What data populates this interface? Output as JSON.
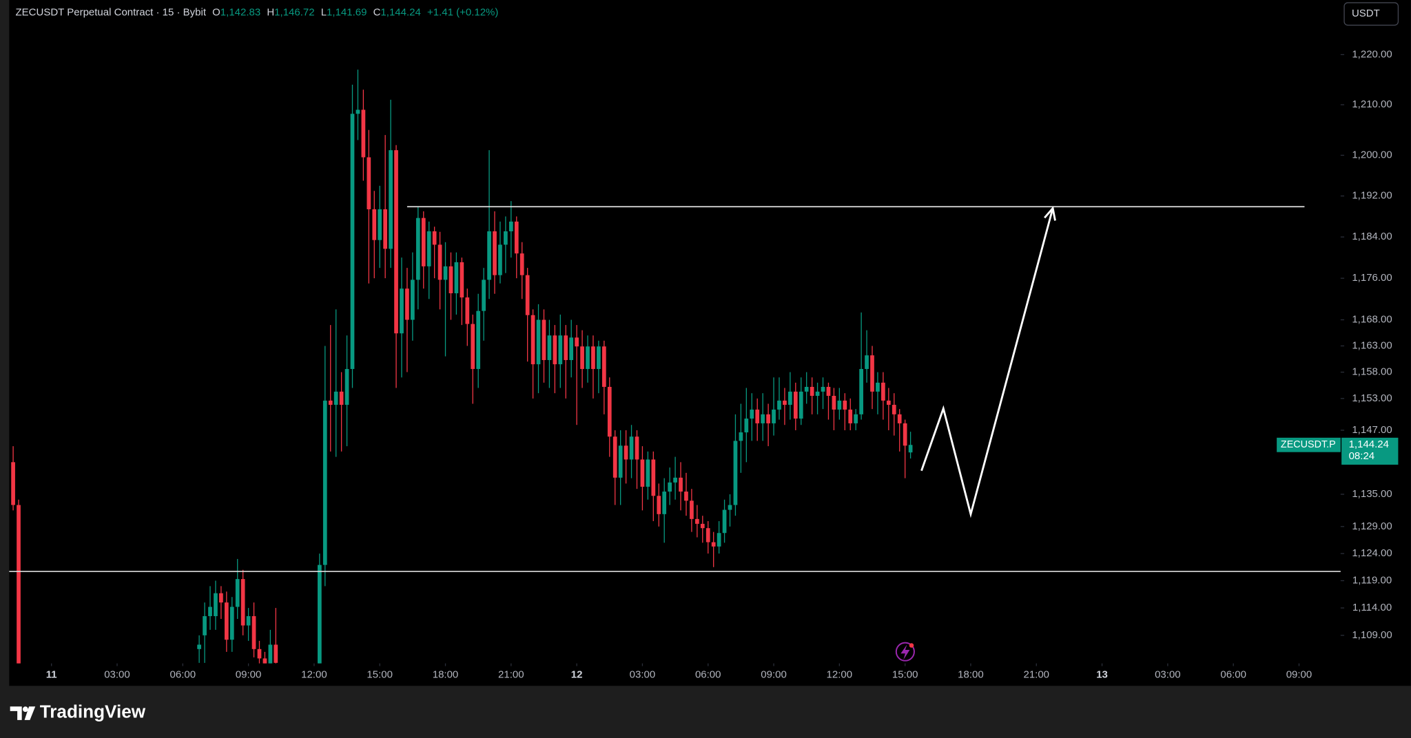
{
  "chart_data": {
    "type": "candlestick",
    "log_scale": true,
    "up_color": "#089981",
    "down_color": "#f23645",
    "header": {
      "title": "ZECUSDT Perpetual Contract · 15 · Bybit",
      "open_label": "O",
      "open": "1,142.83",
      "high_label": "H",
      "high": "1,146.72",
      "low_label": "L",
      "low": "1,141.69",
      "close_label": "C",
      "close": "1,144.24",
      "change": "+1.41 (+0.12%)"
    },
    "currency": "USDT",
    "price_tag": {
      "symbol": "ZECUSDT.P",
      "price": "1,144.24",
      "countdown": "08:24"
    },
    "brand": "TradingView",
    "xlim": [
      -1.93,
      58.9
    ],
    "xticks": [
      {
        "value": 0,
        "label": "11"
      },
      {
        "value": 3,
        "label": "03:00"
      },
      {
        "value": 6,
        "label": "06:00"
      },
      {
        "value": 9,
        "label": "09:00"
      },
      {
        "value": 12,
        "label": "12:00"
      },
      {
        "value": 15,
        "label": "15:00"
      },
      {
        "value": 18,
        "label": "18:00"
      },
      {
        "value": 21,
        "label": "21:00"
      },
      {
        "value": 24,
        "label": "12"
      },
      {
        "value": 27,
        "label": "03:00"
      },
      {
        "value": 30,
        "label": "06:00"
      },
      {
        "value": 33,
        "label": "09:00"
      },
      {
        "value": 36,
        "label": "12:00"
      },
      {
        "value": 39,
        "label": "15:00"
      },
      {
        "value": 42,
        "label": "18:00"
      },
      {
        "value": 45,
        "label": "21:00"
      },
      {
        "value": 48,
        "label": "13"
      },
      {
        "value": 51,
        "label": "03:00"
      },
      {
        "value": 54,
        "label": "06:00"
      },
      {
        "value": 57,
        "label": "09:00"
      }
    ],
    "ylim": [
      1103.9,
      1231.0
    ],
    "yticks": [
      {
        "value": 1220,
        "label": "1,220.00"
      },
      {
        "value": 1210,
        "label": "1,210.00"
      },
      {
        "value": 1200,
        "label": "1,200.00"
      },
      {
        "value": 1192,
        "label": "1,192.00"
      },
      {
        "value": 1184,
        "label": "1,184.00"
      },
      {
        "value": 1176,
        "label": "1,176.00"
      },
      {
        "value": 1168,
        "label": "1,168.00"
      },
      {
        "value": 1163,
        "label": "1,163.00"
      },
      {
        "value": 1158,
        "label": "1,158.00"
      },
      {
        "value": 1153,
        "label": "1,153.00"
      },
      {
        "value": 1147,
        "label": "1,147.00"
      },
      {
        "value": 1135,
        "label": "1,135.00"
      },
      {
        "value": 1129,
        "label": "1,129.00"
      },
      {
        "value": 1124,
        "label": "1,124.00"
      },
      {
        "value": 1119,
        "label": "1,119.00"
      },
      {
        "value": 1114,
        "label": "1,114.00"
      },
      {
        "value": 1109,
        "label": "1,109.00"
      }
    ],
    "levels": [
      {
        "value": 1189.9,
        "x": [
          16.25,
          57.25
        ]
      },
      {
        "value": 1120.7
      }
    ],
    "projection": {
      "x": [
        39.75,
        40.75,
        42.0,
        45.75
      ],
      "values": [
        1139.4,
        1151.1,
        1131.3,
        1189.6
      ]
    },
    "candles": [
      {
        "x": -1.75,
        "open": 1141,
        "high": 1144,
        "low": 1132,
        "close": 1133
      },
      {
        "x": -1.5,
        "open": 1133,
        "high": 1134,
        "low": 1100,
        "close": 1101
      },
      {
        "x": 6.75,
        "open": 1106.5,
        "high": 1109,
        "low": 1104,
        "close": 1107.3
      },
      {
        "x": 7.0,
        "open": 1109,
        "high": 1115,
        "low": 1104,
        "close": 1112.5
      },
      {
        "x": 7.25,
        "open": 1112.5,
        "high": 1118,
        "low": 1110,
        "close": 1114.2
      },
      {
        "x": 7.5,
        "open": 1112.5,
        "high": 1119,
        "low": 1110,
        "close": 1116.7
      },
      {
        "x": 7.75,
        "open": 1116.7,
        "high": 1118,
        "low": 1112,
        "close": 1115
      },
      {
        "x": 8.0,
        "open": 1115,
        "high": 1117,
        "low": 1106,
        "close": 1108.2
      },
      {
        "x": 8.25,
        "open": 1108.2,
        "high": 1116,
        "low": 1106,
        "close": 1114.2
      },
      {
        "x": 8.5,
        "open": 1114.2,
        "high": 1123,
        "low": 1112,
        "close": 1119.3
      },
      {
        "x": 8.75,
        "open": 1119.3,
        "high": 1121,
        "low": 1109,
        "close": 1110.8
      },
      {
        "x": 9.0,
        "open": 1110.8,
        "high": 1114,
        "low": 1108,
        "close": 1112.5
      },
      {
        "x": 9.25,
        "open": 1112.5,
        "high": 1115,
        "low": 1105,
        "close": 1106.5
      },
      {
        "x": 9.5,
        "open": 1106.5,
        "high": 1108,
        "low": 1102,
        "close": 1104.8
      },
      {
        "x": 9.75,
        "open": 1104.8,
        "high": 1106,
        "low": 1101,
        "close": 1103
      },
      {
        "x": 10.0,
        "open": 1103,
        "high": 1110,
        "low": 1102,
        "close": 1107.3
      },
      {
        "x": 10.25,
        "open": 1107.3,
        "high": 1114,
        "low": 1102,
        "close": 1104
      },
      {
        "x": 12.25,
        "open": 1100,
        "high": 1124,
        "low": 1098,
        "close": 1121.9
      },
      {
        "x": 12.5,
        "open": 1121.9,
        "high": 1163,
        "low": 1118,
        "close": 1152.6
      },
      {
        "x": 12.75,
        "open": 1152.6,
        "high": 1167,
        "low": 1143,
        "close": 1151.8
      },
      {
        "x": 13.0,
        "open": 1151.8,
        "high": 1170,
        "low": 1142,
        "close": 1154.3
      },
      {
        "x": 13.25,
        "open": 1154.3,
        "high": 1158,
        "low": 1143,
        "close": 1151.8
      },
      {
        "x": 13.5,
        "open": 1151.8,
        "high": 1165,
        "low": 1144,
        "close": 1158.6
      },
      {
        "x": 13.75,
        "open": 1158.6,
        "high": 1214,
        "low": 1155,
        "close": 1208.2
      },
      {
        "x": 14.0,
        "open": 1208.2,
        "high": 1217,
        "low": 1203,
        "close": 1209
      },
      {
        "x": 14.25,
        "open": 1209,
        "high": 1213,
        "low": 1195,
        "close": 1199.6
      },
      {
        "x": 14.5,
        "open": 1199.6,
        "high": 1205,
        "low": 1175,
        "close": 1189.4
      },
      {
        "x": 14.75,
        "open": 1189.4,
        "high": 1193,
        "low": 1176,
        "close": 1183.4
      },
      {
        "x": 15.0,
        "open": 1183.4,
        "high": 1194,
        "low": 1178,
        "close": 1189.4
      },
      {
        "x": 15.25,
        "open": 1189.4,
        "high": 1204,
        "low": 1176,
        "close": 1181.7
      },
      {
        "x": 15.5,
        "open": 1181.7,
        "high": 1211,
        "low": 1178,
        "close": 1201
      },
      {
        "x": 15.75,
        "open": 1201,
        "high": 1202,
        "low": 1155,
        "close": 1165.4
      },
      {
        "x": 16.0,
        "open": 1165.4,
        "high": 1180,
        "low": 1157,
        "close": 1174
      },
      {
        "x": 16.25,
        "open": 1174,
        "high": 1178,
        "low": 1158,
        "close": 1168
      },
      {
        "x": 16.5,
        "open": 1168,
        "high": 1181,
        "low": 1164,
        "close": 1175.7
      },
      {
        "x": 16.75,
        "open": 1175.7,
        "high": 1190,
        "low": 1170,
        "close": 1187.7
      },
      {
        "x": 17.0,
        "open": 1187.7,
        "high": 1189,
        "low": 1174,
        "close": 1178.3
      },
      {
        "x": 17.25,
        "open": 1178.3,
        "high": 1187,
        "low": 1172,
        "close": 1185.1
      },
      {
        "x": 17.5,
        "open": 1185.1,
        "high": 1186,
        "low": 1176,
        "close": 1182.5
      },
      {
        "x": 17.75,
        "open": 1182.5,
        "high": 1185,
        "low": 1170,
        "close": 1175.7
      },
      {
        "x": 18.0,
        "open": 1175.7,
        "high": 1183,
        "low": 1161,
        "close": 1178.3
      },
      {
        "x": 18.25,
        "open": 1178.3,
        "high": 1181,
        "low": 1168,
        "close": 1173.1
      },
      {
        "x": 18.5,
        "open": 1173.1,
        "high": 1181,
        "low": 1169,
        "close": 1179.1
      },
      {
        "x": 18.75,
        "open": 1179.1,
        "high": 1180,
        "low": 1167,
        "close": 1172.3
      },
      {
        "x": 19.0,
        "open": 1172.3,
        "high": 1174,
        "low": 1163,
        "close": 1167.2
      },
      {
        "x": 19.25,
        "open": 1167.2,
        "high": 1169,
        "low": 1152,
        "close": 1158.6
      },
      {
        "x": 19.5,
        "open": 1158.6,
        "high": 1173,
        "low": 1155,
        "close": 1169.7
      },
      {
        "x": 19.75,
        "open": 1169.7,
        "high": 1178,
        "low": 1164,
        "close": 1175.7
      },
      {
        "x": 20.0,
        "open": 1175.7,
        "high": 1201,
        "low": 1172,
        "close": 1185.1
      },
      {
        "x": 20.25,
        "open": 1185.1,
        "high": 1189,
        "low": 1173,
        "close": 1176.6
      },
      {
        "x": 20.5,
        "open": 1176.6,
        "high": 1187,
        "low": 1175,
        "close": 1182.5
      },
      {
        "x": 20.75,
        "open": 1182.5,
        "high": 1188,
        "low": 1177,
        "close": 1185.1
      },
      {
        "x": 21.0,
        "open": 1185.1,
        "high": 1191,
        "low": 1180,
        "close": 1187
      },
      {
        "x": 21.25,
        "open": 1187,
        "high": 1188,
        "low": 1176,
        "close": 1180.8
      },
      {
        "x": 21.5,
        "open": 1180.8,
        "high": 1183,
        "low": 1172,
        "close": 1176.6
      },
      {
        "x": 21.75,
        "open": 1176.6,
        "high": 1178,
        "low": 1160,
        "close": 1168.9
      },
      {
        "x": 22.0,
        "open": 1168.9,
        "high": 1170,
        "low": 1153,
        "close": 1159.5
      },
      {
        "x": 22.25,
        "open": 1159.5,
        "high": 1171,
        "low": 1154,
        "close": 1168
      },
      {
        "x": 22.5,
        "open": 1168,
        "high": 1170,
        "low": 1156,
        "close": 1160.3
      },
      {
        "x": 22.75,
        "open": 1160.3,
        "high": 1168,
        "low": 1155,
        "close": 1165
      },
      {
        "x": 23.0,
        "open": 1165,
        "high": 1167,
        "low": 1154,
        "close": 1159.5
      },
      {
        "x": 23.25,
        "open": 1159.5,
        "high": 1169,
        "low": 1155,
        "close": 1165
      },
      {
        "x": 23.5,
        "open": 1165,
        "high": 1167,
        "low": 1153,
        "close": 1160.3
      },
      {
        "x": 23.75,
        "open": 1160.3,
        "high": 1168,
        "low": 1157,
        "close": 1164.6
      },
      {
        "x": 24.0,
        "open": 1164.6,
        "high": 1167,
        "low": 1148,
        "close": 1162.9
      },
      {
        "x": 24.25,
        "open": 1162.9,
        "high": 1166,
        "low": 1155,
        "close": 1158.6
      },
      {
        "x": 24.5,
        "open": 1158.6,
        "high": 1165,
        "low": 1156,
        "close": 1162.9
      },
      {
        "x": 24.75,
        "open": 1162.9,
        "high": 1165,
        "low": 1153,
        "close": 1158.6
      },
      {
        "x": 25.0,
        "open": 1158.6,
        "high": 1164,
        "low": 1154,
        "close": 1162.9
      },
      {
        "x": 25.25,
        "open": 1162.9,
        "high": 1164,
        "low": 1150,
        "close": 1155.2
      },
      {
        "x": 25.5,
        "open": 1155.2,
        "high": 1157,
        "low": 1142,
        "close": 1145.8
      },
      {
        "x": 25.75,
        "open": 1145.8,
        "high": 1147,
        "low": 1133,
        "close": 1138.1
      },
      {
        "x": 26.0,
        "open": 1138.1,
        "high": 1147,
        "low": 1133,
        "close": 1144.1
      },
      {
        "x": 26.25,
        "open": 1144.1,
        "high": 1147,
        "low": 1137,
        "close": 1141.5
      },
      {
        "x": 26.5,
        "open": 1141.5,
        "high": 1148,
        "low": 1138,
        "close": 1145.8
      },
      {
        "x": 26.75,
        "open": 1145.8,
        "high": 1147,
        "low": 1136,
        "close": 1141.5
      },
      {
        "x": 27.0,
        "open": 1141.5,
        "high": 1144,
        "low": 1132,
        "close": 1136.4
      },
      {
        "x": 27.25,
        "open": 1136.4,
        "high": 1143,
        "low": 1134,
        "close": 1141.5
      },
      {
        "x": 27.5,
        "open": 1141.5,
        "high": 1143,
        "low": 1130,
        "close": 1134.7
      },
      {
        "x": 27.75,
        "open": 1134.7,
        "high": 1137,
        "low": 1129,
        "close": 1131.3
      },
      {
        "x": 28.0,
        "open": 1131.3,
        "high": 1138,
        "low": 1126,
        "close": 1135.5
      },
      {
        "x": 28.25,
        "open": 1135.5,
        "high": 1140,
        "low": 1133,
        "close": 1137.2
      },
      {
        "x": 28.5,
        "open": 1137.2,
        "high": 1142,
        "low": 1134,
        "close": 1138.1
      },
      {
        "x": 28.75,
        "open": 1138.1,
        "high": 1141,
        "low": 1132,
        "close": 1135.5
      },
      {
        "x": 29.0,
        "open": 1135.5,
        "high": 1139,
        "low": 1131,
        "close": 1133.8
      },
      {
        "x": 29.25,
        "open": 1133.8,
        "high": 1136,
        "low": 1128,
        "close": 1130.4
      },
      {
        "x": 29.5,
        "open": 1130.4,
        "high": 1133,
        "low": 1127,
        "close": 1129.5
      },
      {
        "x": 29.75,
        "open": 1129.5,
        "high": 1131,
        "low": 1126,
        "close": 1128.7
      },
      {
        "x": 30.0,
        "open": 1128.7,
        "high": 1130,
        "low": 1124,
        "close": 1126.1
      },
      {
        "x": 30.25,
        "open": 1126.1,
        "high": 1128,
        "low": 1121.5,
        "close": 1125.3
      },
      {
        "x": 30.5,
        "open": 1125.3,
        "high": 1130,
        "low": 1124,
        "close": 1127.8
      },
      {
        "x": 30.75,
        "open": 1127.8,
        "high": 1134,
        "low": 1126,
        "close": 1132.1
      },
      {
        "x": 31.0,
        "open": 1132.1,
        "high": 1135,
        "low": 1129,
        "close": 1133
      },
      {
        "x": 31.25,
        "open": 1133,
        "high": 1150,
        "low": 1131,
        "close": 1145
      },
      {
        "x": 31.5,
        "open": 1145,
        "high": 1152,
        "low": 1139,
        "close": 1146.6
      },
      {
        "x": 31.75,
        "open": 1146.6,
        "high": 1155,
        "low": 1141,
        "close": 1149.2
      },
      {
        "x": 32.0,
        "open": 1149.2,
        "high": 1154,
        "low": 1145,
        "close": 1150.9
      },
      {
        "x": 32.25,
        "open": 1150.9,
        "high": 1153,
        "low": 1145,
        "close": 1148.3
      },
      {
        "x": 32.5,
        "open": 1148.3,
        "high": 1154,
        "low": 1145,
        "close": 1150
      },
      {
        "x": 32.75,
        "open": 1150,
        "high": 1152,
        "low": 1144,
        "close": 1148.3
      },
      {
        "x": 33.0,
        "open": 1148.3,
        "high": 1157,
        "low": 1146,
        "close": 1150.9
      },
      {
        "x": 33.25,
        "open": 1150.9,
        "high": 1157,
        "low": 1149,
        "close": 1152.6
      },
      {
        "x": 33.5,
        "open": 1152.6,
        "high": 1155,
        "low": 1148,
        "close": 1151.8
      },
      {
        "x": 33.75,
        "open": 1151.8,
        "high": 1158,
        "low": 1149,
        "close": 1154.3
      },
      {
        "x": 34.0,
        "open": 1154.3,
        "high": 1156,
        "low": 1147,
        "close": 1149.2
      },
      {
        "x": 34.25,
        "open": 1149.2,
        "high": 1157,
        "low": 1148,
        "close": 1154.3
      },
      {
        "x": 34.5,
        "open": 1154.3,
        "high": 1158,
        "low": 1152,
        "close": 1155.2
      },
      {
        "x": 34.75,
        "open": 1155.2,
        "high": 1157,
        "low": 1150,
        "close": 1153.5
      },
      {
        "x": 35.0,
        "open": 1153.5,
        "high": 1156,
        "low": 1150,
        "close": 1154.3
      },
      {
        "x": 35.25,
        "open": 1154.3,
        "high": 1157,
        "low": 1151,
        "close": 1155.2
      },
      {
        "x": 35.5,
        "open": 1155.2,
        "high": 1156,
        "low": 1149,
        "close": 1153.5
      },
      {
        "x": 35.75,
        "open": 1153.5,
        "high": 1155,
        "low": 1147,
        "close": 1150.9
      },
      {
        "x": 36.0,
        "open": 1150.9,
        "high": 1155,
        "low": 1149,
        "close": 1152.6
      },
      {
        "x": 36.25,
        "open": 1152.6,
        "high": 1154,
        "low": 1147,
        "close": 1150.9
      },
      {
        "x": 36.5,
        "open": 1150.9,
        "high": 1153,
        "low": 1147,
        "close": 1148.3
      },
      {
        "x": 36.75,
        "open": 1148.3,
        "high": 1151,
        "low": 1147,
        "close": 1150
      },
      {
        "x": 37.0,
        "open": 1150,
        "high": 1169.4,
        "low": 1149,
        "close": 1158.6
      },
      {
        "x": 37.25,
        "open": 1158.6,
        "high": 1166,
        "low": 1156,
        "close": 1161.2
      },
      {
        "x": 37.5,
        "open": 1161.2,
        "high": 1163,
        "low": 1151,
        "close": 1154.3
      },
      {
        "x": 37.75,
        "open": 1154.3,
        "high": 1158,
        "low": 1150,
        "close": 1156
      },
      {
        "x": 38.0,
        "open": 1156,
        "high": 1158,
        "low": 1149,
        "close": 1152.6
      },
      {
        "x": 38.25,
        "open": 1152.6,
        "high": 1155,
        "low": 1147,
        "close": 1151.8
      },
      {
        "x": 38.5,
        "open": 1151.8,
        "high": 1154,
        "low": 1146,
        "close": 1150
      },
      {
        "x": 38.75,
        "open": 1150,
        "high": 1151,
        "low": 1143,
        "close": 1148.3
      },
      {
        "x": 39.0,
        "open": 1148.3,
        "high": 1149,
        "low": 1138,
        "close": 1144.1
      },
      {
        "x": 39.25,
        "open": 1142.83,
        "high": 1146.72,
        "low": 1141.69,
        "close": 1144.24
      }
    ]
  }
}
